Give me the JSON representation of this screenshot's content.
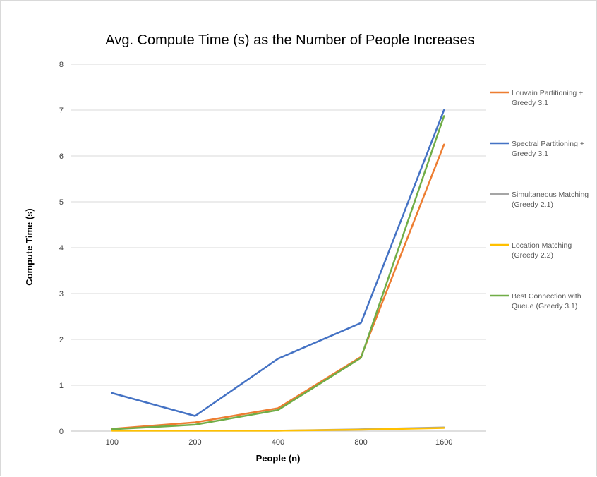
{
  "chart_data": {
    "type": "line",
    "title": "Avg. Compute Time (s) as the Number of People Increases",
    "xlabel": "People (n)",
    "ylabel": "Compute Time (s)",
    "categories": [
      "100",
      "200",
      "400",
      "800",
      "1600"
    ],
    "ylim": [
      0,
      8
    ],
    "yticks": [
      "0",
      "1",
      "2",
      "3",
      "4",
      "5",
      "6",
      "7",
      "8"
    ],
    "grid": true,
    "legend_position": "right",
    "series": [
      {
        "name": "Louvain Partitioning + Greedy 3.1",
        "legend_lines": [
          "Louvain Partitioning +",
          "Greedy 3.1"
        ],
        "color": "#ED7D31",
        "values": [
          0.05,
          0.19,
          0.5,
          1.62,
          6.25
        ]
      },
      {
        "name": "Spectral Partitioning + Greedy 3.1",
        "legend_lines": [
          "Spectral Partitioning +",
          "Greedy 3.1"
        ],
        "color": "#4472C4",
        "values": [
          0.83,
          0.33,
          1.58,
          2.36,
          7.0
        ]
      },
      {
        "name": "Simultaneous Matching (Greedy 2.1)",
        "legend_lines": [
          "Simultaneous Matching",
          "(Greedy 2.1)"
        ],
        "color": "#A5A5A5",
        "values": [
          0.01,
          0.01,
          0.01,
          0.04,
          0.08
        ]
      },
      {
        "name": "Location Matching (Greedy 2.2)",
        "legend_lines": [
          "Location Matching",
          "(Greedy 2.2)"
        ],
        "color": "#FFC000",
        "values": [
          0.01,
          0.01,
          0.01,
          0.03,
          0.07
        ]
      },
      {
        "name": "Best Connection with Queue (Greedy 3.1)",
        "legend_lines": [
          "Best Connection with",
          "Queue (Greedy 3.1)"
        ],
        "color": "#70AD47",
        "values": [
          0.04,
          0.14,
          0.46,
          1.6,
          6.87
        ]
      }
    ]
  }
}
